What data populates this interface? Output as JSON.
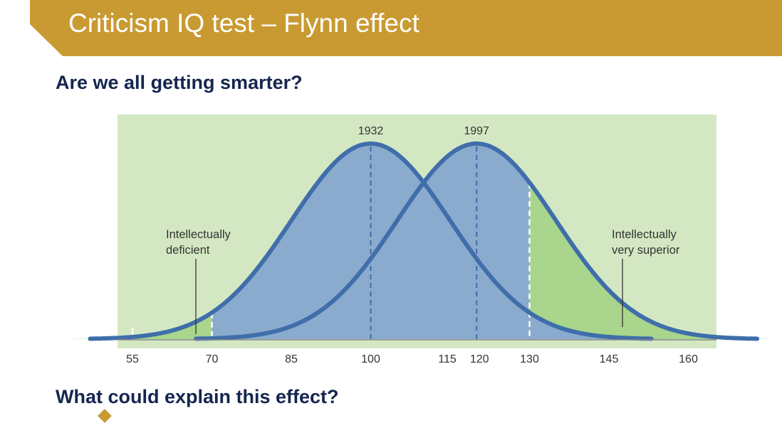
{
  "slide": {
    "title": "Criticism IQ test – Flynn effect",
    "question_top": "Are we all getting smarter?",
    "question_bottom": "What could explain this effect?",
    "accent_color": "#c99a32",
    "heading_color": "#14264f"
  },
  "chart_data": {
    "type": "area",
    "x_ticks": [
      55,
      70,
      85,
      100,
      115,
      120,
      130,
      145,
      160
    ],
    "x_range": [
      55,
      160
    ],
    "series": [
      {
        "name": "1932",
        "mean": 100
      },
      {
        "name": "1997",
        "mean": 120
      }
    ],
    "threshold_lines": [
      70,
      130
    ],
    "annotations": [
      {
        "lines": [
          "Intellectually",
          "deficient"
        ]
      },
      {
        "lines": [
          "Intellectually",
          "very superior"
        ]
      }
    ],
    "colors": {
      "background": "#d3e8c2",
      "curve_fill": "#8aabcd",
      "curve_stroke": "#3f6eab",
      "tail_fill": "#a9d58c"
    }
  }
}
